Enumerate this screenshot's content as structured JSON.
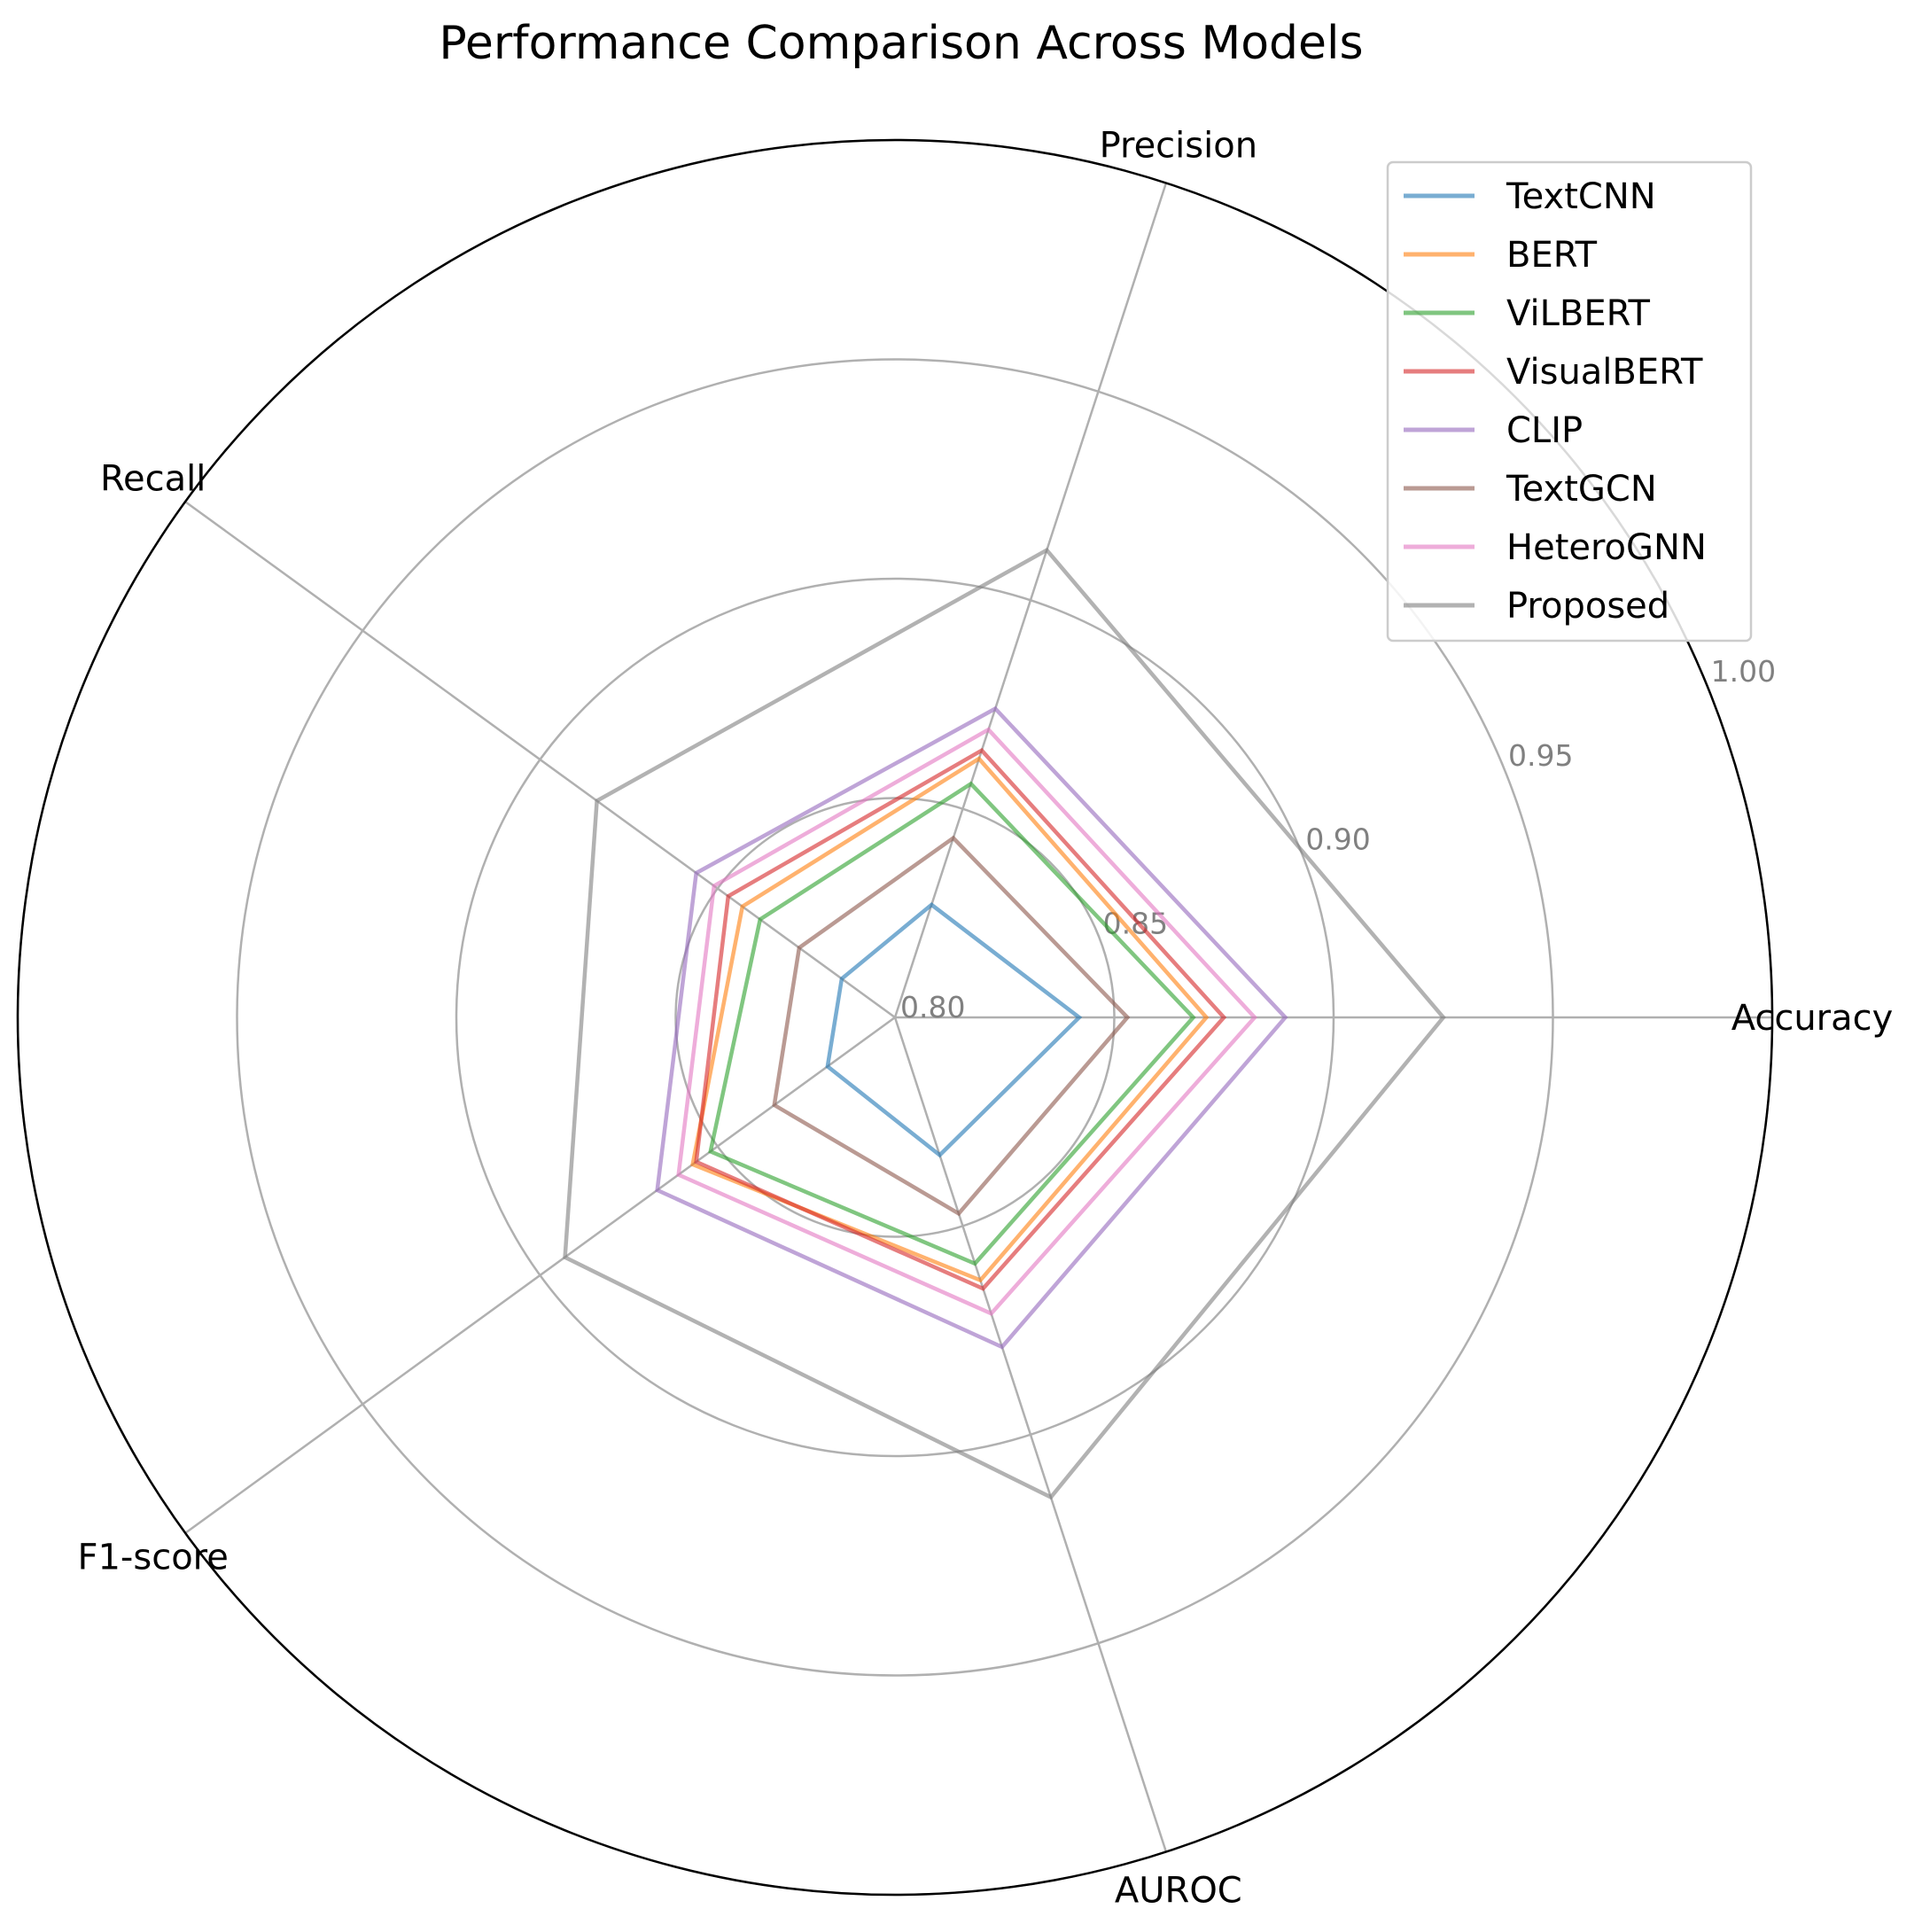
{
  "chart_data": {
    "type": "radar",
    "title": "Performance Comparison Across Models",
    "axes": [
      "Accuracy",
      "Precision",
      "Recall",
      "F1-score",
      "AUROC"
    ],
    "rlim": [
      0.8,
      1.0
    ],
    "rticks": [
      0.8,
      0.85,
      0.9,
      0.95,
      1.0
    ],
    "rtick_labels": [
      "0.80",
      "0.85",
      "0.90",
      "0.95",
      "1.00"
    ],
    "grid": true,
    "legend_position": "top-right",
    "series": [
      {
        "name": "TextCNN",
        "color": "#1f77b4",
        "values": [
          0.842,
          0.827,
          0.815,
          0.819,
          0.833
        ]
      },
      {
        "name": "BERT",
        "color": "#ff7f0e",
        "values": [
          0.871,
          0.862,
          0.843,
          0.857,
          0.863
        ]
      },
      {
        "name": "ViLBERT",
        "color": "#2ca02c",
        "values": [
          0.868,
          0.856,
          0.838,
          0.852,
          0.859
        ]
      },
      {
        "name": "VisualBERT",
        "color": "#d62728",
        "values": [
          0.875,
          0.864,
          0.847,
          0.856,
          0.865
        ]
      },
      {
        "name": "CLIP",
        "color": "#9467bd",
        "values": [
          0.889,
          0.874,
          0.856,
          0.867,
          0.879
        ]
      },
      {
        "name": "TextGCN",
        "color": "#8c564b",
        "values": [
          0.853,
          0.843,
          0.827,
          0.834,
          0.847
        ]
      },
      {
        "name": "HeteroGNN",
        "color": "#e377c2",
        "values": [
          0.882,
          0.869,
          0.851,
          0.861,
          0.871
        ]
      },
      {
        "name": "Proposed",
        "color": "#7f7f7f",
        "values": [
          0.925,
          0.912,
          0.884,
          0.893,
          0.915
        ]
      }
    ]
  }
}
